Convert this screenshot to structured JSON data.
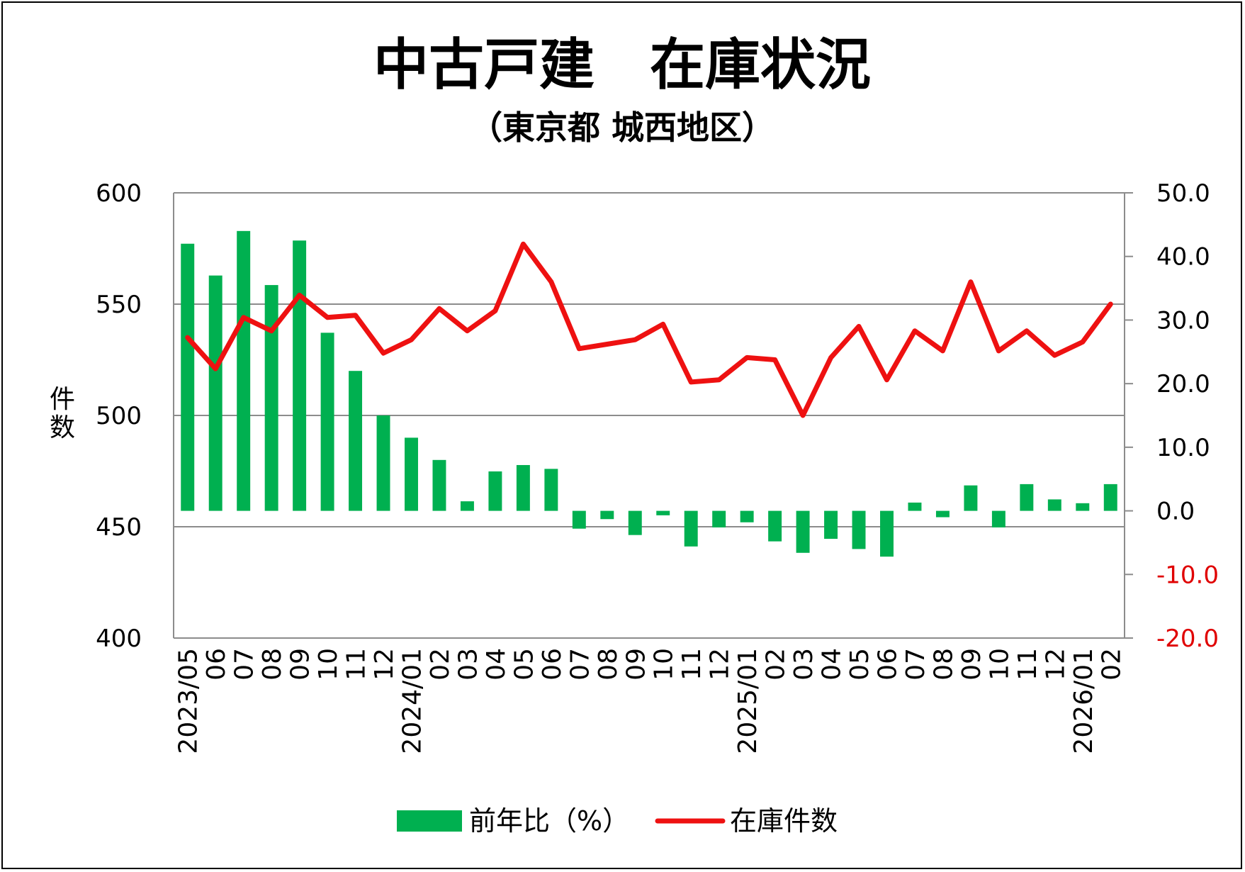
{
  "chart_data": {
    "type": "bar+line",
    "title": "中古戸建　在庫状況",
    "subtitle": "（東京都 城西地区）",
    "ylabel": "件数",
    "ylim_left": [
      400,
      600
    ],
    "yticks_left": [
      "400",
      "450",
      "500",
      "550",
      "600"
    ],
    "ylim_right": [
      -20,
      50
    ],
    "yticks_right": [
      "-20.0",
      "-10.0",
      "0.0",
      "10.0",
      "20.0",
      "30.0",
      "40.0",
      "50.0"
    ],
    "grid": true,
    "legend_position": "bottom",
    "categories": [
      "2023/05",
      "06",
      "07",
      "08",
      "09",
      "10",
      "11",
      "12",
      "2024/01",
      "02",
      "03",
      "04",
      "05",
      "06",
      "07",
      "08",
      "09",
      "10",
      "11",
      "12",
      "2025/01",
      "02",
      "03",
      "04",
      "05",
      "06",
      "07",
      "08",
      "09",
      "10",
      "11",
      "12",
      "2026/01",
      "02"
    ],
    "series": [
      {
        "name": "前年比（%）",
        "type": "bar",
        "axis": "right",
        "color": "#00b050",
        "values": [
          42.0,
          37.0,
          44.0,
          35.5,
          42.5,
          28.0,
          22.0,
          15.0,
          11.5,
          8.0,
          1.5,
          6.2,
          7.2,
          6.6,
          -2.8,
          -1.3,
          -3.8,
          -0.7,
          -5.6,
          -2.6,
          -1.8,
          -4.8,
          -6.6,
          -4.4,
          -6.0,
          -7.2,
          1.3,
          -1.0,
          4.0,
          -2.6,
          4.2,
          1.8,
          1.2,
          4.2
        ]
      },
      {
        "name": "在庫件数",
        "type": "line",
        "axis": "left",
        "color": "#ee1111",
        "values": [
          535,
          521,
          544,
          538,
          554,
          544,
          545,
          528,
          534,
          548,
          538,
          547,
          577,
          560,
          530,
          532,
          534,
          541,
          515,
          516,
          526,
          525,
          500,
          526,
          540,
          516,
          538,
          529,
          560,
          529,
          538,
          527,
          533,
          550
        ]
      }
    ]
  }
}
